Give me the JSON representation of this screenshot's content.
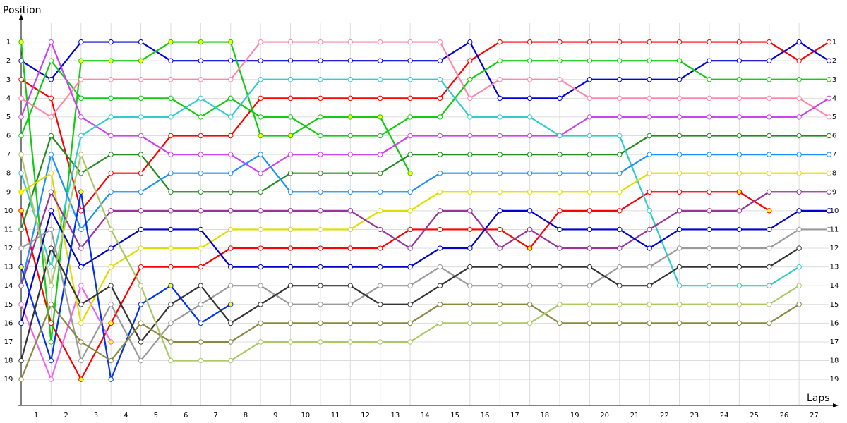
{
  "chart_data": {
    "type": "line",
    "y_label": "Position",
    "x_label": "Laps",
    "x": [
      0,
      1,
      2,
      3,
      4,
      5,
      6,
      7,
      8,
      9,
      10,
      11,
      12,
      13,
      14,
      15,
      16,
      17,
      18,
      19,
      20,
      21,
      22,
      23,
      24,
      25,
      26,
      27
    ],
    "xlim": [
      0,
      27.2
    ],
    "xticks": [
      {
        "value": 0.5,
        "label": "1"
      },
      {
        "value": 1.5,
        "label": "2"
      },
      {
        "value": 2.5,
        "label": "3"
      },
      {
        "value": 3.5,
        "label": "4"
      },
      {
        "value": 4.5,
        "label": "5"
      },
      {
        "value": 5.5,
        "label": "6"
      },
      {
        "value": 6.5,
        "label": "7"
      },
      {
        "value": 7.5,
        "label": "8"
      },
      {
        "value": 8.5,
        "label": "9"
      },
      {
        "value": 9.5,
        "label": "10"
      },
      {
        "value": 10.5,
        "label": "11"
      },
      {
        "value": 11.5,
        "label": "12"
      },
      {
        "value": 12.5,
        "label": "13"
      },
      {
        "value": 13.5,
        "label": "14"
      },
      {
        "value": 14.5,
        "label": "15"
      },
      {
        "value": 15.5,
        "label": "16"
      },
      {
        "value": 16.5,
        "label": "17"
      },
      {
        "value": 17.5,
        "label": "18"
      },
      {
        "value": 18.5,
        "label": "19"
      },
      {
        "value": 19.5,
        "label": "20"
      },
      {
        "value": 20.5,
        "label": "21"
      },
      {
        "value": 21.5,
        "label": "22"
      },
      {
        "value": 22.5,
        "label": "23"
      },
      {
        "value": 23.5,
        "label": "24"
      },
      {
        "value": 24.5,
        "label": "25"
      },
      {
        "value": 25.5,
        "label": "26"
      },
      {
        "value": 26.5,
        "label": "27"
      }
    ],
    "ylim": [
      0,
      20.5
    ],
    "y_inverted": true,
    "yticks": [
      1,
      2,
      3,
      4,
      5,
      6,
      7,
      8,
      9,
      10,
      11,
      12,
      13,
      14,
      15,
      16,
      17,
      18,
      19
    ],
    "grid": true,
    "marker_color": "#ffffff",
    "highlight_color": "#ffff00",
    "series": [
      {
        "color": "#ff0000",
        "values": [
          3,
          4,
          10,
          8,
          8,
          6,
          6,
          6,
          4,
          4,
          4,
          4,
          4,
          4,
          4,
          2,
          1,
          1,
          1,
          1,
          1,
          1,
          1,
          1,
          1,
          1,
          2,
          1
        ]
      },
      {
        "color": "#ff0000",
        "values": [
          10,
          16,
          19,
          16,
          13,
          13,
          13,
          12,
          12,
          12,
          12,
          12,
          12,
          11,
          11,
          11,
          11,
          12,
          10,
          10,
          10,
          9,
          9,
          9,
          9,
          10,
          null,
          null
        ],
        "highlight": [
          0,
          2,
          3,
          17,
          24,
          25
        ]
      },
      {
        "color": "#0000dd",
        "values": [
          2,
          3,
          1,
          1,
          1,
          2,
          2,
          2,
          2,
          2,
          2,
          2,
          2,
          2,
          2,
          1,
          4,
          4,
          4,
          3,
          3,
          3,
          3,
          2,
          2,
          2,
          1,
          2
        ]
      },
      {
        "color": "#11cc11",
        "values": [
          1,
          17,
          2,
          2,
          2,
          1,
          1,
          1,
          6,
          6,
          5,
          5,
          5,
          8,
          null,
          null,
          null,
          null,
          null,
          null,
          null,
          null,
          null,
          null,
          null,
          null,
          null,
          null
        ],
        "highlight": [
          0,
          2,
          3,
          4,
          5,
          6,
          7,
          8,
          9,
          11,
          12,
          13
        ]
      },
      {
        "color": "#11cc11",
        "values": [
          6,
          2,
          4,
          4,
          4,
          4,
          5,
          4,
          5,
          5,
          6,
          6,
          6,
          5,
          5,
          3,
          2,
          2,
          2,
          2,
          2,
          2,
          2,
          3,
          3,
          3,
          3,
          3
        ]
      },
      {
        "color": "#ff88aa",
        "values": [
          4,
          5,
          3,
          3,
          3,
          3,
          3,
          3,
          1,
          1,
          1,
          1,
          1,
          1,
          1,
          4,
          3,
          3,
          3,
          4,
          4,
          4,
          4,
          4,
          4,
          4,
          4,
          5
        ]
      },
      {
        "color": "#cc44ee",
        "values": [
          5,
          1,
          5,
          6,
          6,
          7,
          7,
          7,
          8,
          7,
          7,
          7,
          7,
          6,
          6,
          6,
          6,
          6,
          6,
          5,
          5,
          5,
          5,
          5,
          5,
          5,
          5,
          4
        ]
      },
      {
        "color": "#ee66ee",
        "values": [
          15,
          19,
          14,
          17,
          null,
          null,
          null,
          null,
          null,
          null,
          null,
          null,
          null,
          null,
          null,
          null,
          null,
          null,
          null,
          null,
          null,
          null,
          null,
          null,
          null,
          null,
          null,
          null
        ],
        "highlight": [
          3
        ]
      },
      {
        "color": "#228b22",
        "values": [
          11,
          6,
          8,
          7,
          7,
          9,
          9,
          9,
          9,
          8,
          8,
          8,
          8,
          7,
          7,
          7,
          7,
          7,
          7,
          7,
          7,
          6,
          6,
          6,
          6,
          6,
          6,
          6
        ]
      },
      {
        "color": "#33cccc",
        "values": [
          8,
          13,
          6,
          5,
          5,
          5,
          4,
          5,
          3,
          3,
          3,
          3,
          3,
          3,
          3,
          5,
          5,
          5,
          6,
          6,
          6,
          10,
          14,
          14,
          14,
          14,
          13,
          null
        ]
      },
      {
        "color": "#1e90ff",
        "values": [
          14,
          7,
          11,
          9,
          9,
          8,
          8,
          8,
          7,
          9,
          9,
          9,
          9,
          9,
          8,
          8,
          8,
          8,
          8,
          8,
          8,
          7,
          7,
          7,
          7,
          7,
          7,
          7
        ]
      },
      {
        "color": "#dddd00",
        "values": [
          9,
          8,
          16,
          13,
          12,
          12,
          12,
          11,
          11,
          11,
          11,
          11,
          10,
          10,
          9,
          9,
          9,
          9,
          9,
          9,
          9,
          8,
          8,
          8,
          8,
          8,
          8,
          8
        ],
        "highlight": [
          0
        ]
      },
      {
        "color": "#993399",
        "values": [
          14,
          9,
          12,
          10,
          10,
          10,
          10,
          10,
          10,
          10,
          10,
          10,
          11,
          12,
          10,
          10,
          12,
          11,
          12,
          12,
          12,
          11,
          10,
          10,
          10,
          9,
          9,
          9
        ]
      },
      {
        "color": "#0000cc",
        "values": [
          16,
          10,
          13,
          12,
          11,
          11,
          11,
          13,
          13,
          13,
          13,
          13,
          13,
          13,
          12,
          12,
          10,
          10,
          11,
          11,
          11,
          12,
          11,
          11,
          11,
          11,
          10,
          10
        ]
      },
      {
        "color": "#0033ee",
        "values": [
          13,
          18,
          9,
          19,
          15,
          14,
          16,
          15,
          null,
          null,
          null,
          null,
          null,
          null,
          null,
          null,
          null,
          null,
          null,
          null,
          null,
          null,
          null,
          null,
          null,
          null,
          null,
          null
        ],
        "highlight": [
          0,
          2,
          5,
          7
        ]
      },
      {
        "color": "#999999",
        "values": [
          12,
          11,
          18,
          15,
          18,
          16,
          15,
          14,
          14,
          15,
          15,
          15,
          14,
          14,
          13,
          14,
          14,
          14,
          14,
          14,
          13,
          13,
          12,
          12,
          12,
          12,
          11,
          11
        ]
      },
      {
        "color": "#333333",
        "values": [
          18,
          12,
          15,
          14,
          17,
          15,
          14,
          16,
          15,
          14,
          14,
          14,
          15,
          15,
          14,
          13,
          13,
          13,
          13,
          13,
          14,
          14,
          13,
          13,
          13,
          13,
          12,
          null
        ]
      },
      {
        "color": "#888844",
        "values": [
          19,
          15,
          17,
          18,
          16,
          17,
          17,
          17,
          16,
          16,
          16,
          16,
          16,
          16,
          15,
          15,
          15,
          15,
          16,
          16,
          16,
          16,
          16,
          16,
          16,
          16,
          15,
          null
        ]
      },
      {
        "color": "#aac866",
        "values": [
          7,
          14,
          7,
          11,
          14,
          18,
          18,
          18,
          17,
          17,
          17,
          17,
          17,
          17,
          16,
          16,
          16,
          16,
          15,
          15,
          15,
          15,
          15,
          15,
          15,
          15,
          14,
          null
        ]
      }
    ]
  }
}
